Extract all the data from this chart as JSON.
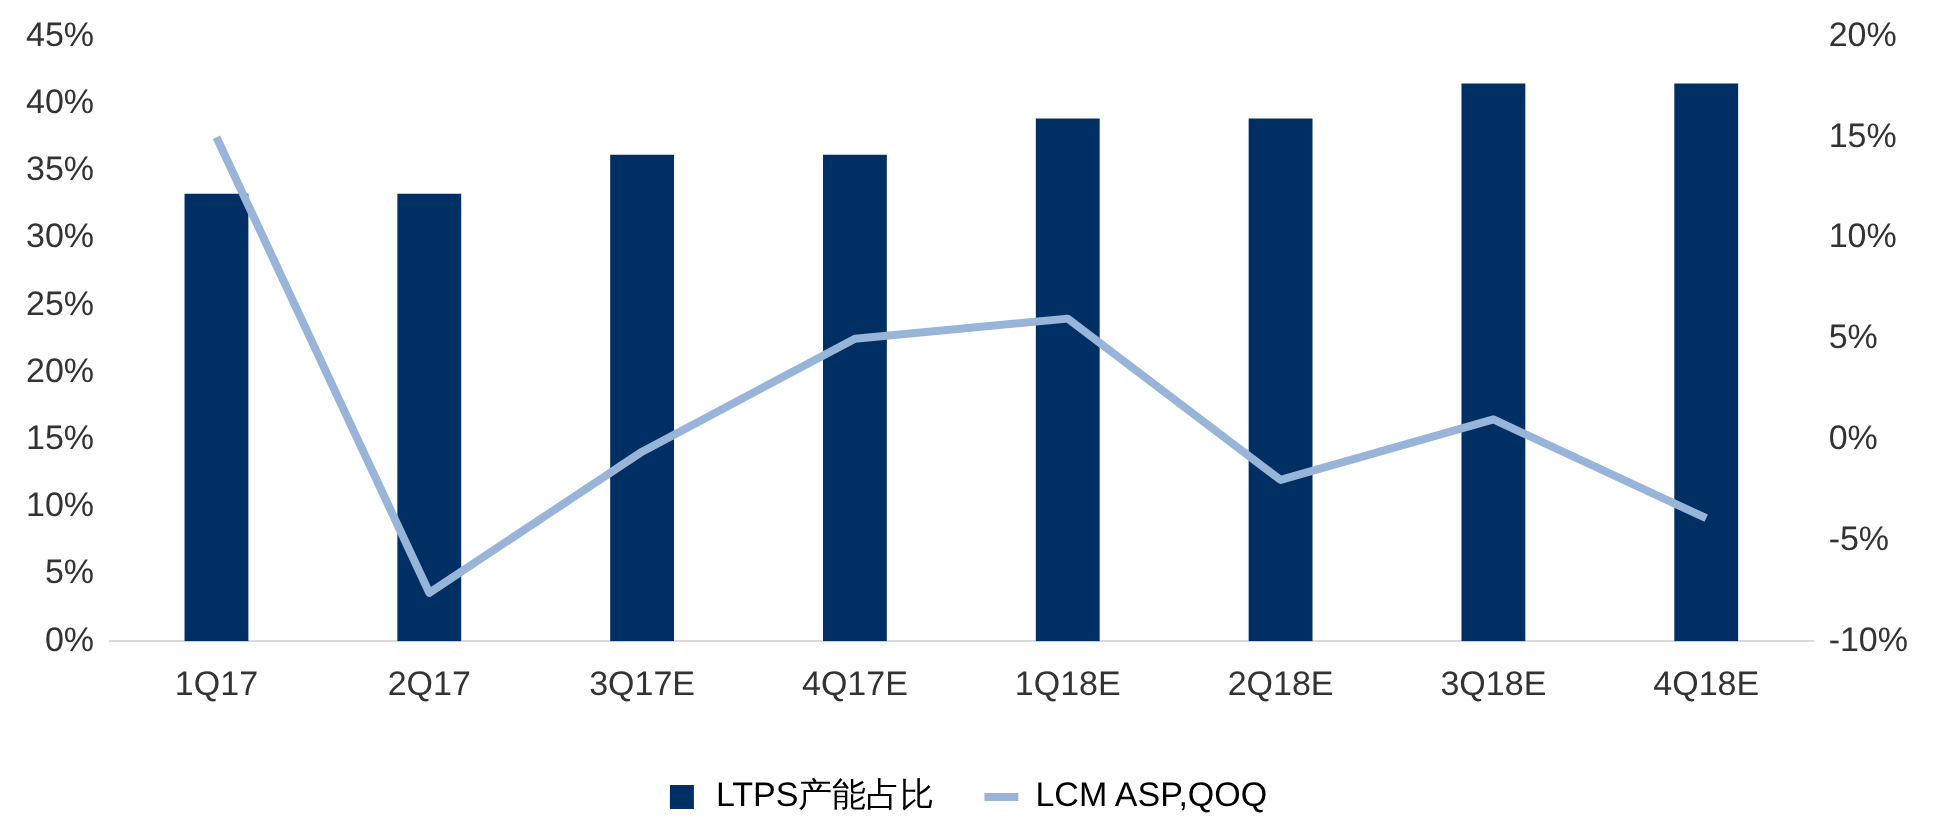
{
  "chart_data": {
    "type": "bar",
    "categories": [
      "1Q17",
      "2Q17",
      "3Q17E",
      "4Q17E",
      "1Q18E",
      "2Q18E",
      "3Q18E",
      "4Q18E"
    ],
    "series": [
      {
        "name": "LTPS产能占比",
        "color": "#003063",
        "values": [
          33.3,
          33.3,
          36.2,
          36.2,
          38.9,
          38.9,
          41.5,
          41.5
        ]
      },
      {
        "name": "LCM ASP,QOQ",
        "type": "line",
        "axis": "y2",
        "color": "#98b4d8",
        "values": [
          15,
          -7.6,
          -0.6,
          5,
          6,
          -2,
          1,
          -3.9
        ]
      }
    ],
    "ylim": [
      0,
      45
    ],
    "yticks": [
      {
        "value": 0,
        "label": "0%"
      },
      {
        "value": 5,
        "label": "5%"
      },
      {
        "value": 10,
        "label": "10%"
      },
      {
        "value": 15,
        "label": "15%"
      },
      {
        "value": 20,
        "label": "20%"
      },
      {
        "value": 25,
        "label": "25%"
      },
      {
        "value": 30,
        "label": "30%"
      },
      {
        "value": 35,
        "label": "35%"
      },
      {
        "value": 40,
        "label": "40%"
      },
      {
        "value": 45,
        "label": "45%"
      }
    ],
    "y2lim": [
      -10,
      20
    ],
    "y2ticks": [
      {
        "value": -10,
        "label": "-10%"
      },
      {
        "value": -5,
        "label": "-5%"
      },
      {
        "value": 0,
        "label": "0%"
      },
      {
        "value": 5,
        "label": "5%"
      },
      {
        "value": 10,
        "label": "10%"
      },
      {
        "value": 15,
        "label": "15%"
      },
      {
        "value": 20,
        "label": "20%"
      }
    ],
    "grid": false,
    "legend": "bottom",
    "marker": "none"
  }
}
